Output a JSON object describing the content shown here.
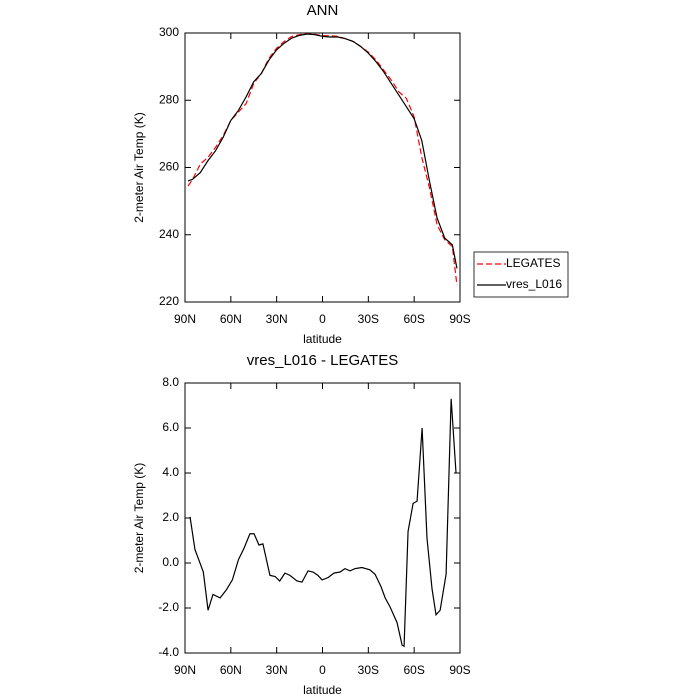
{
  "chart_data": [
    {
      "type": "line",
      "title": "ANN",
      "ylabel": "2-meter Air Temp (K)",
      "xlabel": "latitude",
      "x": [
        88,
        85,
        80,
        75,
        70,
        65,
        60,
        55,
        50,
        45,
        40,
        35,
        30,
        25,
        20,
        15,
        10,
        5,
        0,
        -5,
        -10,
        -15,
        -20,
        -25,
        -30,
        -35,
        -40,
        -45,
        -50,
        -55,
        -60,
        -65,
        -70,
        -75,
        -80,
        -85,
        -88
      ],
      "series": [
        {
          "name": "LEGATES",
          "color": "#ff0000",
          "line_style": "dashed",
          "values": [
            254.5,
            256.5,
            261,
            263,
            266,
            269.5,
            274,
            276.5,
            279,
            285,
            288,
            292.5,
            295.5,
            297.5,
            299,
            299.5,
            299.8,
            299.6,
            299.2,
            299.2,
            299,
            298.3,
            297.5,
            296,
            294.3,
            292,
            289,
            286,
            282.5,
            280.5,
            275,
            263,
            254,
            243,
            238.5,
            236.5,
            225
          ]
        },
        {
          "name": "vres_L016",
          "color": "#000000",
          "line_style": "solid",
          "values": [
            256,
            256.5,
            258.5,
            262,
            265,
            269,
            274,
            277,
            281,
            285.5,
            288,
            292,
            295,
            297,
            298.5,
            299.3,
            299.7,
            299.5,
            299,
            298.8,
            298.8,
            298.3,
            297.5,
            296,
            294,
            291.5,
            288.5,
            285,
            281.5,
            278,
            274.5,
            268,
            256,
            245,
            239,
            237,
            230
          ]
        }
      ],
      "xlim": [
        90,
        -90
      ],
      "xticks": [
        {
          "value": 90,
          "label": "90N"
        },
        {
          "value": 60,
          "label": "60N"
        },
        {
          "value": 30,
          "label": "30N"
        },
        0,
        {
          "value": -30,
          "label": "30S"
        },
        {
          "value": -60,
          "label": "60S"
        },
        {
          "value": -90,
          "label": "90S"
        }
      ],
      "ylim": [
        220,
        300
      ],
      "yticks": [
        220,
        240,
        260,
        280,
        300
      ],
      "legend": "right"
    },
    {
      "type": "line",
      "title": "vres_L016 - LEGATES",
      "ylabel": "2-meter Air Temp (K)",
      "xlabel": "latitude",
      "x": [
        86.7,
        83.5,
        78,
        74.9,
        71.7,
        67,
        63,
        59,
        55,
        51.4,
        47.5,
        44.8,
        41.6,
        39,
        34.4,
        31,
        28,
        24.6,
        21.3,
        16.7,
        13.4,
        9.5,
        6.2,
        3,
        0.3,
        -3.6,
        -7.5,
        -11.5,
        -14.7,
        -18,
        -21.3,
        -25.8,
        -31,
        -34.4,
        -38.3,
        -41,
        -44.2,
        -48.8,
        -52.1,
        -53.4,
        -56,
        -59.3,
        -61.9,
        -65.2,
        -68.4,
        -71.7,
        -74.3,
        -77,
        -80.9,
        -84.2,
        -87.4
      ],
      "series": [
        {
          "color": "#000000",
          "line_style": "solid",
          "values": [
            2.05,
            0.6,
            -0.4,
            -2.1,
            -1.4,
            -1.55,
            -1.2,
            -0.75,
            0.15,
            0.65,
            1.3,
            1.3,
            0.8,
            0.85,
            -0.55,
            -0.6,
            -0.8,
            -0.45,
            -0.55,
            -0.8,
            -0.85,
            -0.35,
            -0.4,
            -0.55,
            -0.75,
            -0.65,
            -0.45,
            -0.4,
            -0.25,
            -0.35,
            -0.25,
            -0.2,
            -0.3,
            -0.5,
            -1.05,
            -1.55,
            -1.95,
            -2.65,
            -3.65,
            -3.7,
            1.4,
            2.65,
            2.75,
            6.0,
            1.1,
            -1.15,
            -2.3,
            -2.1,
            -0.5,
            7.3,
            4.0
          ]
        }
      ],
      "xlim": [
        90,
        -90
      ],
      "xticks": [
        {
          "value": 90,
          "label": "90N"
        },
        {
          "value": 60,
          "label": "60N"
        },
        {
          "value": 30,
          "label": "30N"
        },
        0,
        {
          "value": -30,
          "label": "30S"
        },
        {
          "value": -60,
          "label": "60S"
        },
        {
          "value": -90,
          "label": "90S"
        }
      ],
      "ylim": [
        -4,
        8
      ],
      "yticks": [
        {
          "value": -4,
          "label": "-4.0"
        },
        {
          "value": -2,
          "label": "-2.0"
        },
        {
          "value": 0,
          "label": "0.0"
        },
        {
          "value": 2,
          "label": "2.0"
        },
        {
          "value": 4,
          "label": "4.0"
        },
        {
          "value": 6,
          "label": "6.0"
        },
        {
          "value": 8,
          "label": "8.0"
        }
      ]
    }
  ]
}
